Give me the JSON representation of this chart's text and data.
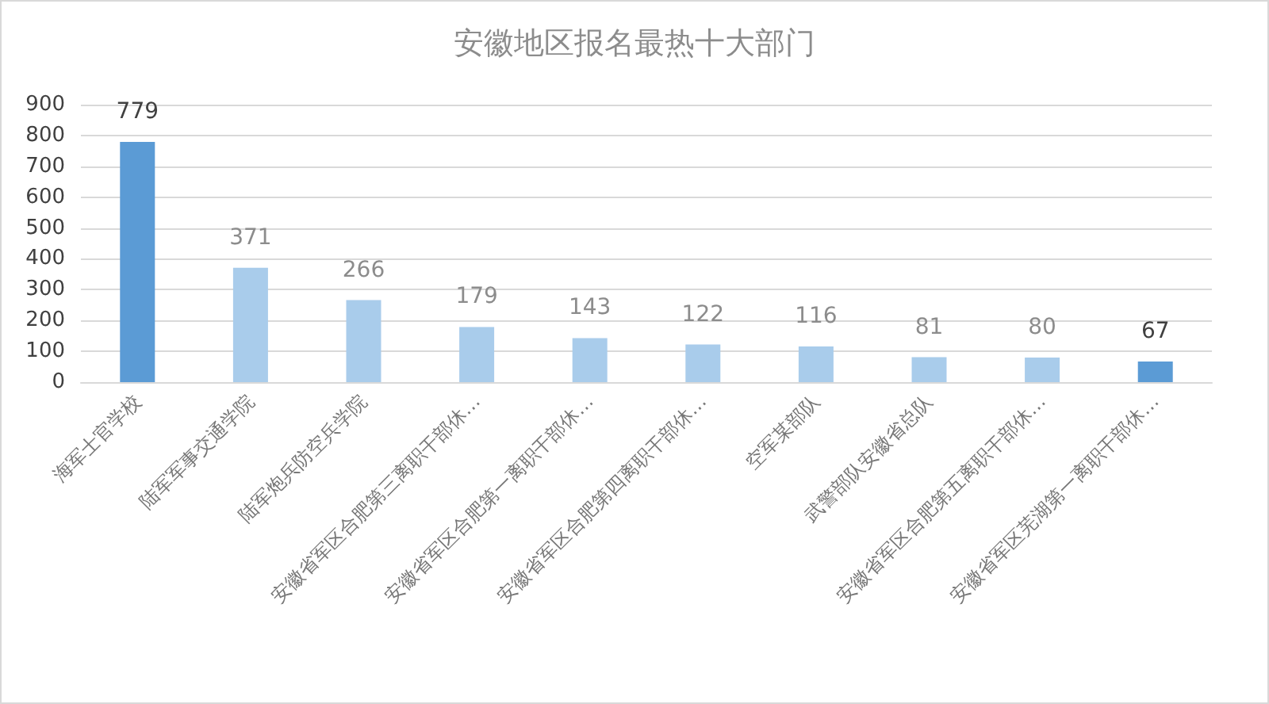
{
  "chart_data": {
    "type": "bar",
    "title": "安徽地区报名最热十大部门",
    "categories": [
      "海军士官学校",
      "陆军军事交通学院",
      "陆军炮兵防空兵学院",
      "安徽省军区合肥第三离职干部休…",
      "安徽省军区合肥第一离职干部休…",
      "安徽省军区合肥第四离职干部休…",
      "空军某部队",
      "武警部队安徽省总队",
      "安徽省军区合肥第五离职干部休…",
      "安徽省军区芜湖第一离职干部休…"
    ],
    "values": [
      779,
      371,
      266,
      179,
      143,
      122,
      116,
      81,
      80,
      67
    ],
    "colors": [
      "#5b9bd5",
      "#a9cceb",
      "#a9cceb",
      "#a9cceb",
      "#a9cceb",
      "#a9cceb",
      "#a9cceb",
      "#a9cceb",
      "#a9cceb",
      "#5b9bd5"
    ],
    "ylim": [
      0,
      900
    ],
    "yticks": [
      0,
      100,
      200,
      300,
      400,
      500,
      600,
      700,
      800,
      900
    ],
    "grid": "y",
    "data_labels": true
  }
}
